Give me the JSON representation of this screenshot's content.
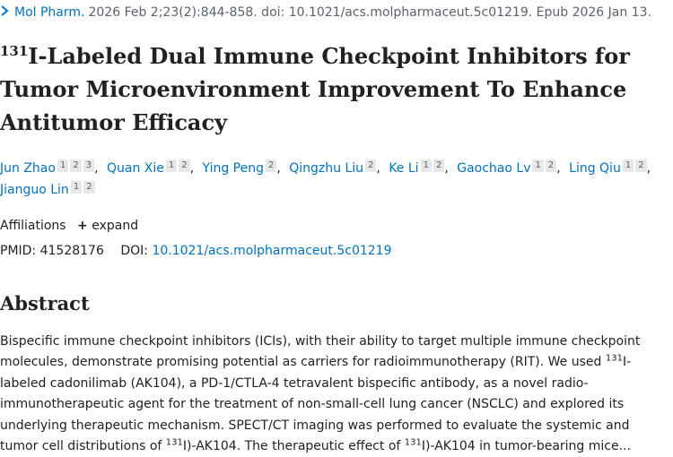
{
  "citation": {
    "journal": "Mol Pharm.",
    "details": "2026 Feb 2;23(2):844-858. doi: 10.1021/acs.molpharmaceut.5c01219. Epub 2026 Jan 13."
  },
  "article": {
    "title_superscript": "131",
    "title_rest": "I-Labeled Dual Immune Checkpoint Inhibitors for Tumor Microenvironment Improvement To Enhance Antitumor Efficacy"
  },
  "authors": [
    {
      "name": "Jun Zhao",
      "affiliations": [
        "1",
        "2",
        "3"
      ]
    },
    {
      "name": "Quan Xie",
      "affiliations": [
        "1",
        "2"
      ]
    },
    {
      "name": "Ying Peng",
      "affiliations": [
        "2"
      ]
    },
    {
      "name": "Qingzhu Liu",
      "affiliations": [
        "2"
      ]
    },
    {
      "name": "Ke Li",
      "affiliations": [
        "1",
        "2"
      ]
    },
    {
      "name": "Gaochao Lv",
      "affiliations": [
        "1",
        "2"
      ]
    },
    {
      "name": "Ling Qiu",
      "affiliations": [
        "1",
        "2"
      ]
    },
    {
      "name": "Jianguo Lin",
      "affiliations": [
        "1",
        "2"
      ]
    }
  ],
  "affiliations_label": "Affiliations",
  "expand_label": "expand",
  "ids": {
    "pmid_label": "PMID:",
    "pmid": "41528176",
    "doi_label": "DOI:",
    "doi": "10.1021/acs.molpharmaceut.5c01219"
  },
  "abstract": {
    "heading": "Abstract",
    "part1": "Bispecific immune checkpoint inhibitors (ICIs), with their ability to target multiple immune checkpoint molecules, demonstrate promising potential as carriers for radioimmunotherapy (RIT). We used ",
    "sup1": "131",
    "part2": "I-labeled cadonilimab (AK104), a PD-1/CTLA-4 tetravalent bispecific antibody, as a novel radio-immunotherapeutic agent for the treatment of non-small-cell lung cancer (NSCLC) and explored its underlying therapeutic mechanism. SPECT/CT imaging was performed to evaluate the systemic and tumor cell distributions of ",
    "sup2": "131",
    "part3": "I)-AK104. The therapeutic effect of ",
    "sup3": "131",
    "part4": "I)-AK104 in tumor-bearing mice..."
  }
}
